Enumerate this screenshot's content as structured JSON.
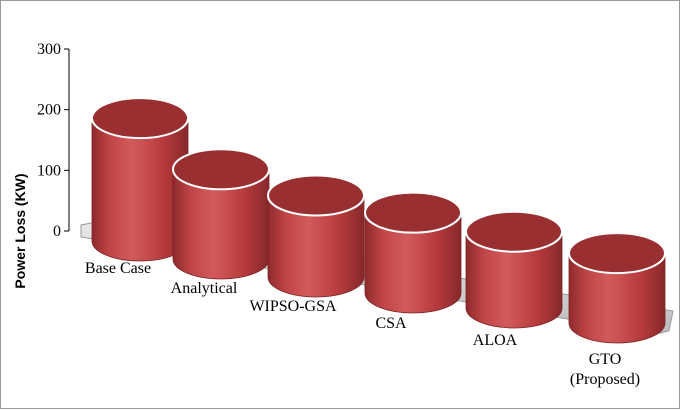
{
  "chart_data": {
    "type": "bar",
    "style": "3d-cylinder",
    "title": "",
    "xlabel": "",
    "ylabel": "Power Loss (KW)",
    "ylim": [
      0,
      300
    ],
    "yticks": [
      0,
      100,
      200,
      300
    ],
    "grid": false,
    "legend": "none",
    "categories": [
      {
        "lines": [
          "Base Case"
        ]
      },
      {
        "lines": [
          "Analytical"
        ]
      },
      {
        "lines": [
          "WIPSO-GSA"
        ]
      },
      {
        "lines": [
          "CSA"
        ]
      },
      {
        "lines": [
          "ALOA"
        ]
      },
      {
        "lines": [
          "GTO",
          "(Proposed)"
        ]
      }
    ],
    "series": [
      {
        "values": [
          211,
          154,
          140,
          138,
          131,
          120
        ]
      }
    ],
    "colors": {
      "cylinder_body": "#b83a3c",
      "cylinder_top": "#9a2f31",
      "floor": "#cfcfcf",
      "axis": "#000000"
    }
  }
}
